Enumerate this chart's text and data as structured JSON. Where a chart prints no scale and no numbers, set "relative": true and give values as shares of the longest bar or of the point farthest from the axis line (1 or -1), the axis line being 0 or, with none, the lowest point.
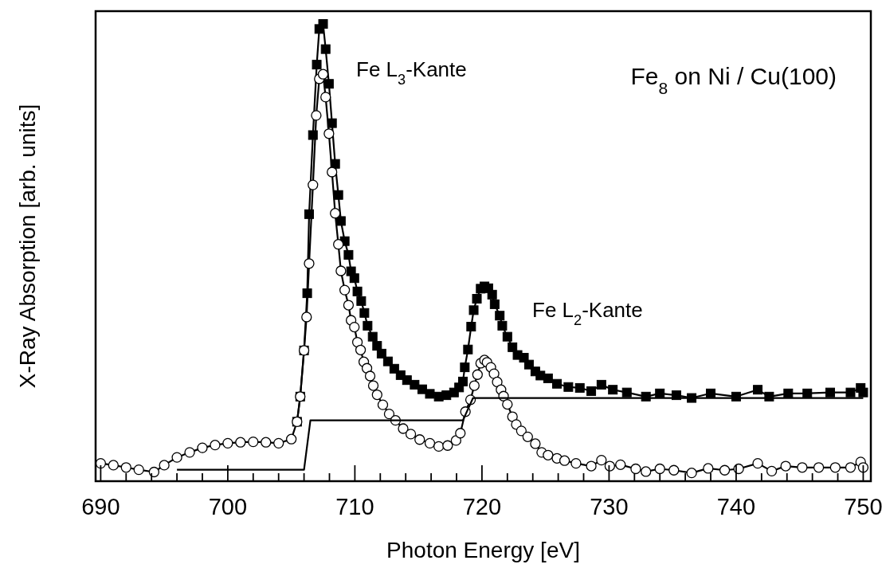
{
  "chart_data": {
    "type": "line",
    "relative": true,
    "xlabel": "Photon Energy [eV]",
    "ylabel": "X-Ray Absorption [arb. units]",
    "xlim": [
      689.6,
      750.6
    ],
    "xticks": [
      690,
      {
        "value": 692,
        "label": null
      },
      {
        "value": 694,
        "label": null
      },
      {
        "value": 696,
        "label": null
      },
      {
        "value": 698,
        "label": null
      },
      700,
      {
        "value": 702,
        "label": null
      },
      {
        "value": 704,
        "label": null
      },
      {
        "value": 706,
        "label": null
      },
      {
        "value": 708,
        "label": null
      },
      710,
      {
        "value": 712,
        "label": null
      },
      {
        "value": 714,
        "label": null
      },
      {
        "value": 716,
        "label": null
      },
      {
        "value": 718,
        "label": null
      },
      720,
      {
        "value": 722,
        "label": null
      },
      {
        "value": 724,
        "label": null
      },
      {
        "value": 726,
        "label": null
      },
      {
        "value": 728,
        "label": null
      },
      730,
      {
        "value": 732,
        "label": null
      },
      {
        "value": 734,
        "label": null
      },
      {
        "value": 736,
        "label": null
      },
      {
        "value": 738,
        "label": null
      },
      740,
      {
        "value": 742,
        "label": null
      },
      {
        "value": 744,
        "label": null
      },
      {
        "value": 746,
        "label": null
      },
      {
        "value": 748,
        "label": null
      },
      750
    ],
    "tick_labels": "x",
    "grid": false,
    "line_style": "solid",
    "annotations": [
      "Fe L$_{3}$-Kante",
      "Fe L$_{2}$-Kante",
      "Fe$_{8}$ on Ni / Cu(100)"
    ],
    "series": [
      {
        "color": "#000000",
        "marker": "square",
        "x": [
          705.45,
          705.7,
          706.0,
          706.25,
          706.4,
          706.7,
          707.0,
          707.2,
          707.5,
          707.7,
          707.96,
          708.2,
          708.45,
          708.7,
          708.9,
          709.2,
          709.5,
          709.7,
          709.96,
          710.2,
          710.5,
          710.75,
          711.0,
          711.4,
          711.75,
          712.1,
          712.6,
          713.1,
          713.6,
          714.1,
          714.7,
          715.3,
          715.9,
          716.6,
          717.2,
          717.8,
          718.2,
          718.5,
          718.65,
          718.9,
          719.15,
          719.35,
          719.6,
          719.9,
          720.2,
          720.5,
          720.8,
          721.0,
          721.4,
          721.6,
          722.0,
          722.4,
          722.8,
          723.3,
          723.7,
          724.2,
          724.6,
          725.2,
          725.9,
          726.8,
          727.7,
          728.6,
          729.4,
          730.3,
          731.4,
          732.9,
          734.0,
          735.3,
          736.5,
          738.0,
          740.0,
          741.7,
          742.6,
          744.1,
          745.6,
          747.4,
          749.0,
          749.8,
          750.0
        ],
        "values": [
          0.13,
          0.185,
          0.286,
          0.411,
          0.584,
          0.757,
          0.911,
          0.989,
          1.0,
          0.945,
          0.869,
          0.783,
          0.694,
          0.626,
          0.569,
          0.525,
          0.495,
          0.459,
          0.444,
          0.415,
          0.394,
          0.368,
          0.34,
          0.316,
          0.296,
          0.279,
          0.262,
          0.246,
          0.232,
          0.221,
          0.211,
          0.201,
          0.191,
          0.185,
          0.188,
          0.194,
          0.205,
          0.218,
          0.249,
          0.288,
          0.338,
          0.374,
          0.399,
          0.421,
          0.426,
          0.422,
          0.408,
          0.387,
          0.362,
          0.34,
          0.316,
          0.293,
          0.276,
          0.27,
          0.255,
          0.24,
          0.231,
          0.225,
          0.213,
          0.206,
          0.204,
          0.197,
          0.211,
          0.2,
          0.194,
          0.185,
          0.192,
          0.188,
          0.182,
          0.192,
          0.185,
          0.2,
          0.185,
          0.192,
          0.192,
          0.194,
          0.194,
          0.204,
          0.194
        ]
      },
      {
        "color": "#000000",
        "marker": "circle",
        "x": [
          690.0,
          691.0,
          692.0,
          693.0,
          694.2,
          695.0,
          696.0,
          697.0,
          698.0,
          699.0,
          700.0,
          701.0,
          702.0,
          703.0,
          704.0,
          705.0,
          705.45,
          705.7,
          706.0,
          706.2,
          706.4,
          706.7,
          706.96,
          707.2,
          707.5,
          707.7,
          707.96,
          708.2,
          708.45,
          708.7,
          708.9,
          709.2,
          709.5,
          709.7,
          709.96,
          710.2,
          710.45,
          710.7,
          710.95,
          711.2,
          711.45,
          711.75,
          712.2,
          712.7,
          713.2,
          713.8,
          714.4,
          715.1,
          715.9,
          716.6,
          717.3,
          717.96,
          718.3,
          718.7,
          719.1,
          719.4,
          719.65,
          719.9,
          720.2,
          720.4,
          720.7,
          720.95,
          721.2,
          721.5,
          721.7,
          722.0,
          722.4,
          722.7,
          723.1,
          723.6,
          724.2,
          724.7,
          725.2,
          725.9,
          726.5,
          727.4,
          728.6,
          729.4,
          730.06,
          730.9,
          732.1,
          732.9,
          734.0,
          735.1,
          736.5,
          737.8,
          739.1,
          740.2,
          741.7,
          742.8,
          743.9,
          745.2,
          746.5,
          747.8,
          749.0,
          749.8,
          750.0
        ],
        "values": [
          0.039,
          0.035,
          0.03,
          0.025,
          0.02,
          0.035,
          0.052,
          0.063,
          0.073,
          0.079,
          0.083,
          0.085,
          0.086,
          0.085,
          0.083,
          0.092,
          0.13,
          0.185,
          0.286,
          0.359,
          0.476,
          0.648,
          0.8,
          0.88,
          0.89,
          0.84,
          0.76,
          0.676,
          0.586,
          0.518,
          0.46,
          0.418,
          0.385,
          0.352,
          0.337,
          0.304,
          0.287,
          0.261,
          0.247,
          0.23,
          0.209,
          0.189,
          0.167,
          0.147,
          0.133,
          0.115,
          0.103,
          0.091,
          0.083,
          0.076,
          0.078,
          0.089,
          0.105,
          0.152,
          0.178,
          0.209,
          0.233,
          0.258,
          0.265,
          0.26,
          0.249,
          0.235,
          0.217,
          0.2,
          0.186,
          0.168,
          0.141,
          0.124,
          0.11,
          0.097,
          0.082,
          0.063,
          0.057,
          0.05,
          0.045,
          0.039,
          0.033,
          0.046,
          0.033,
          0.036,
          0.027,
          0.021,
          0.027,
          0.024,
          0.018,
          0.028,
          0.024,
          0.027,
          0.039,
          0.022,
          0.033,
          0.03,
          0.03,
          0.03,
          0.03,
          0.042,
          0.03
        ]
      },
      {
        "color": "#000000",
        "marker": "none",
        "x": [
          696.0,
          706.0,
          706.5,
          718.5,
          719.3,
          750.0
        ],
        "values": [
          0.025,
          0.025,
          0.133,
          0.133,
          0.182,
          0.182
        ]
      }
    ]
  }
}
